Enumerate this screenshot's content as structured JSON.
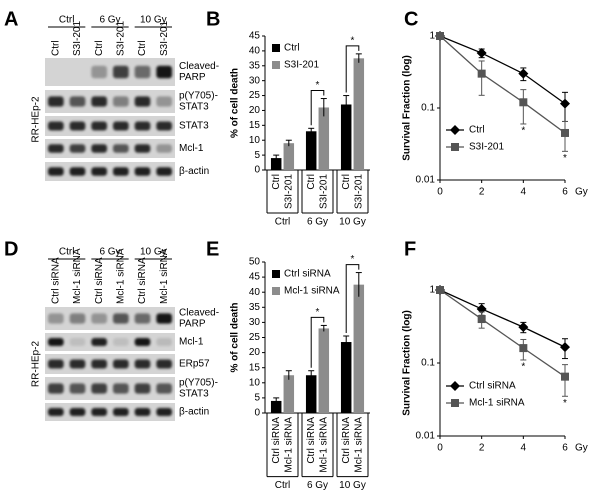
{
  "blots": [
    {
      "panel_label": "A",
      "groups": [
        "Ctrl",
        "6 Gy",
        "10 Gy"
      ],
      "lanes": [
        "Ctrl",
        "S3I-201"
      ],
      "rows": [
        [
          "Cleaved-",
          "PARP"
        ],
        [
          "p(Y705)-",
          "STAT3"
        ],
        [
          "STAT3"
        ],
        [
          "Mcl-1"
        ],
        [
          "β-actin"
        ]
      ],
      "cell_line": "RR-HEp-2"
    },
    {
      "panel_label": "D",
      "groups": [
        "Ctrl",
        "6 Gy",
        "10 Gy"
      ],
      "lanes": [
        "Ctrl siRNA",
        "Mcl-1 siRNA"
      ],
      "rows": [
        [
          "Cleaved-",
          "PARP"
        ],
        [
          "Mcl-1"
        ],
        [
          "ERp57"
        ],
        [
          "p(Y705)-",
          "STAT3"
        ],
        [
          "β-actin"
        ]
      ],
      "cell_line": "RR-HEp-2"
    }
  ],
  "chart_data": [
    {
      "type": "bar",
      "panel_label": "B",
      "y_label": "% of cell death",
      "categories": [
        "Ctrl",
        "6 Gy",
        "10 Gy"
      ],
      "series": [
        {
          "name": "Ctrl",
          "color": "#000000",
          "values": [
            4,
            13,
            22
          ],
          "errors": [
            1,
            1,
            3
          ]
        },
        {
          "name": "S3I-201",
          "color": "#8c8c8c",
          "values": [
            9,
            21,
            37.5
          ],
          "errors": [
            1,
            3,
            1.5
          ]
        }
      ],
      "ylim": [
        0,
        45
      ],
      "yticks": [
        0,
        5,
        10,
        15,
        20,
        25,
        30,
        35,
        40,
        45
      ],
      "annotations": [
        "*",
        "*"
      ],
      "legend": "upper left"
    },
    {
      "type": "line",
      "panel_label": "C",
      "y_label": "Survival Fraction (log)",
      "x_unit": "Gy",
      "x": [
        0,
        2,
        4,
        6
      ],
      "series": [
        {
          "name": "Ctrl",
          "color": "#000000",
          "marker": "diamond",
          "values": [
            1,
            0.58,
            0.3,
            0.115
          ],
          "errors": [
            null,
            0.08,
            0.06,
            0.05
          ]
        },
        {
          "name": "S3I-201",
          "color": "#555555",
          "marker": "square",
          "values": [
            1,
            0.3,
            0.12,
            0.045
          ],
          "errors": [
            null,
            0.15,
            0.06,
            0.02
          ]
        }
      ],
      "xlim": [
        0,
        6
      ],
      "xticks": [
        0,
        2,
        4,
        6
      ],
      "ylim": [
        0.01,
        1
      ],
      "yticks": [
        0.01,
        0.1,
        1
      ],
      "log_y": true,
      "annotations": [
        "*",
        "*"
      ],
      "legend": "lower left"
    },
    {
      "type": "bar",
      "panel_label": "E",
      "y_label": "% of cell death",
      "categories": [
        "Ctrl",
        "6 Gy",
        "10 Gy"
      ],
      "series": [
        {
          "name": "Ctrl siRNA",
          "color": "#000000",
          "values": [
            4,
            12.5,
            23.5
          ],
          "errors": [
            1,
            1.5,
            2
          ]
        },
        {
          "name": "Mcl-1 siRNA",
          "color": "#8c8c8c",
          "values": [
            12.5,
            28,
            42.5
          ],
          "errors": [
            1.5,
            1,
            4
          ]
        }
      ],
      "ylim": [
        0,
        50
      ],
      "yticks": [
        0,
        5,
        10,
        15,
        20,
        25,
        30,
        35,
        40,
        45,
        50
      ],
      "annotations": [
        "*",
        "*"
      ],
      "legend": "upper left"
    },
    {
      "type": "line",
      "panel_label": "F",
      "y_label": "Survival Fraction (log)",
      "x_unit": "Gy",
      "x": [
        0,
        2,
        4,
        6
      ],
      "series": [
        {
          "name": "Ctrl siRNA",
          "color": "#000000",
          "marker": "diamond",
          "values": [
            1,
            0.55,
            0.31,
            0.165
          ],
          "errors": [
            null,
            0.1,
            0.05,
            0.05
          ]
        },
        {
          "name": "Mcl-1 siRNA",
          "color": "#555555",
          "marker": "square",
          "values": [
            1,
            0.4,
            0.16,
            0.065
          ],
          "errors": [
            null,
            0.1,
            0.05,
            0.03
          ]
        }
      ],
      "xlim": [
        0,
        6
      ],
      "xticks": [
        0,
        2,
        4,
        6
      ],
      "ylim": [
        0.01,
        1
      ],
      "yticks": [
        0.01,
        0.1,
        1
      ],
      "log_y": true,
      "annotations": [
        "*",
        "*"
      ],
      "legend": "lower left"
    }
  ]
}
